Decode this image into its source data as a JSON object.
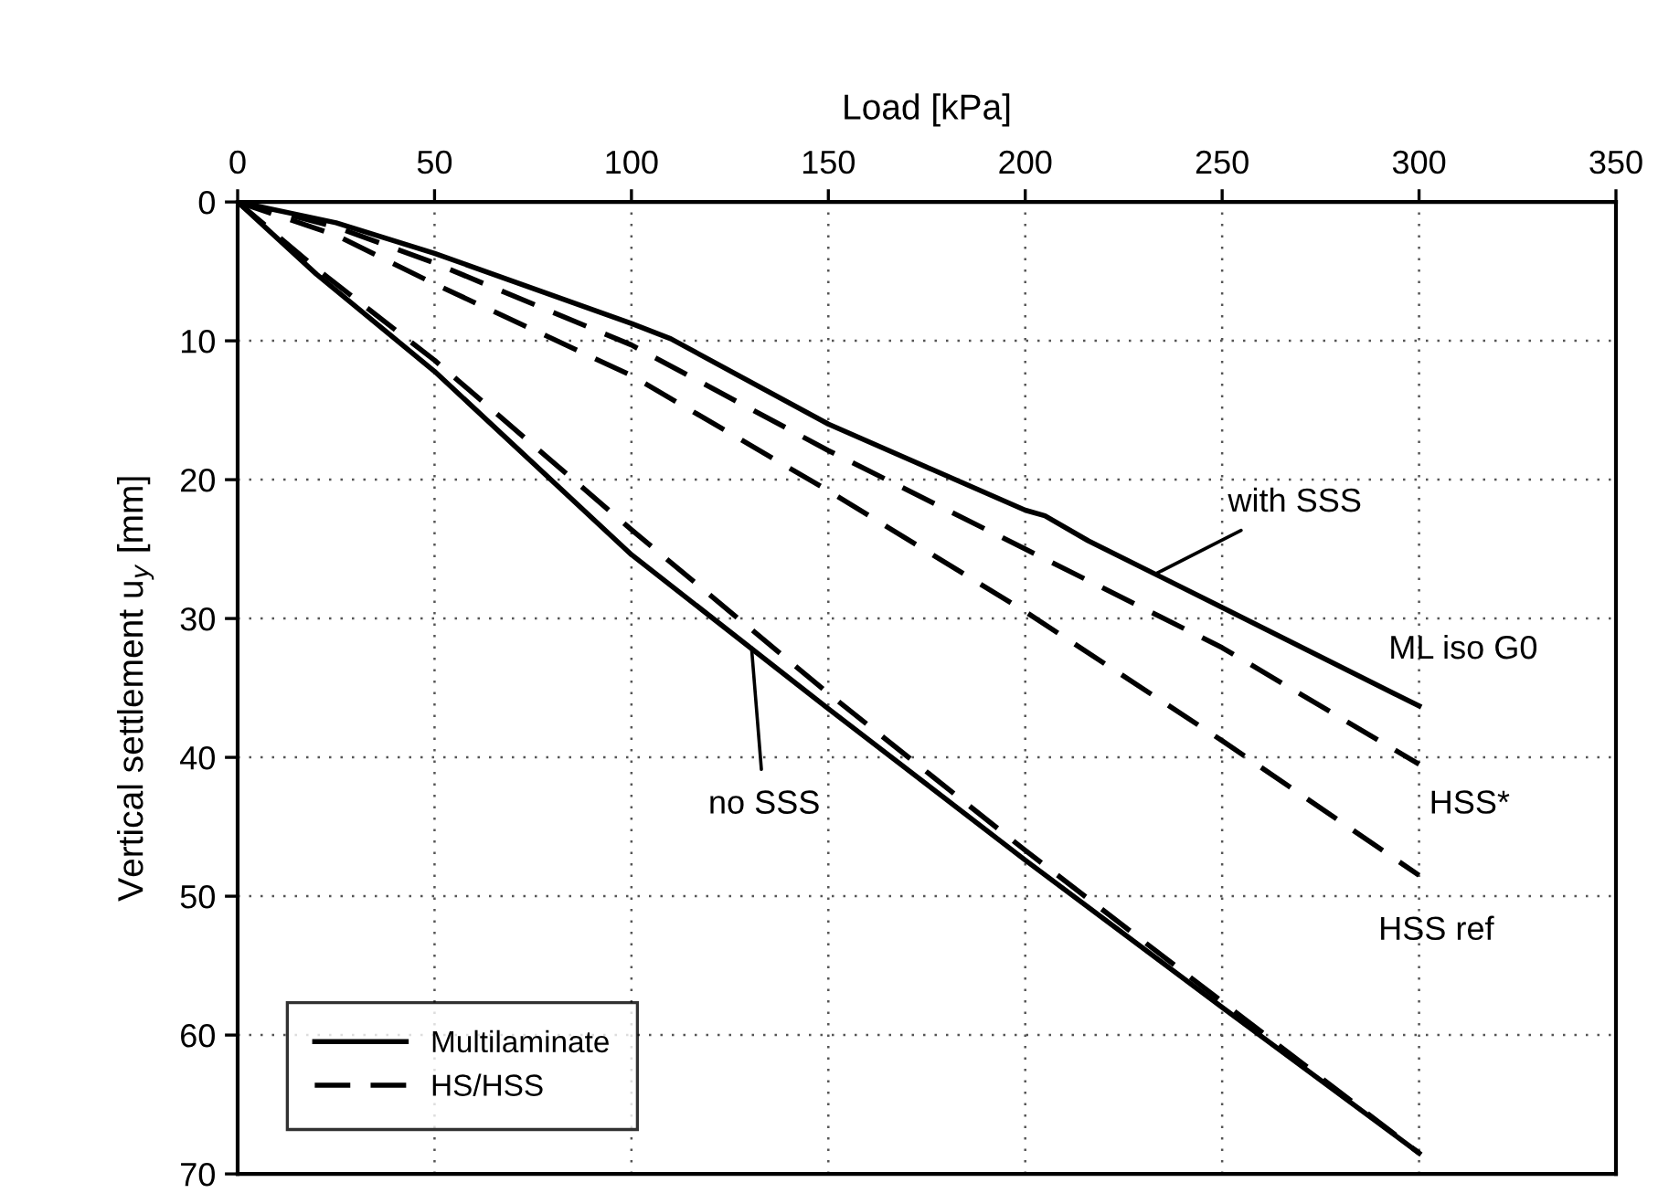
{
  "chart_data": {
    "type": "line",
    "xlabel": "Load [kPa]",
    "ylabel": "Vertical settlement u$_{y}$ [mm]",
    "xlim": [
      0,
      350
    ],
    "xticks": [
      0,
      50,
      100,
      150,
      200,
      250,
      300,
      350
    ],
    "ylim": [
      70,
      0
    ],
    "yticks": [
      0,
      10,
      20,
      30,
      40,
      50,
      60,
      70
    ],
    "grid": true,
    "legend": "bottom left",
    "marker": "none",
    "series": [
      {
        "name": "Multilaminate",
        "color": "#000000",
        "line_style": "solid",
        "x": [
          0,
          20,
          50,
          100,
          150,
          200,
          250,
          300
        ],
        "values": [
          0,
          5.2,
          12.2,
          25.4,
          36.5,
          47.4,
          58,
          68.5
        ]
      },
      {
        "name": "HS/HSS",
        "color": "#000000",
        "line_style": "dashed",
        "x": [
          0,
          20,
          50,
          100,
          150,
          200,
          250,
          300
        ],
        "values": [
          0,
          4.8,
          11.4,
          23.6,
          35.4,
          46.7,
          57.6,
          68.5
        ]
      },
      {
        "name": "ML iso G0",
        "color": "#000000",
        "line_style": "solid",
        "x": [
          0,
          25,
          50,
          100,
          110,
          150,
          200,
          205,
          216,
          250,
          300
        ],
        "values": [
          0,
          1.5,
          3.7,
          8.75,
          9.85,
          16.0,
          22.2,
          22.6,
          24.4,
          29.2,
          36.3
        ]
      },
      {
        "name": "HSS*",
        "color": "#000000",
        "line_style": "dashed",
        "x": [
          0,
          25,
          50,
          100,
          150,
          200,
          250,
          300
        ],
        "values": [
          0,
          1.8,
          4.4,
          10.3,
          17.9,
          25.0,
          32.1,
          40.5
        ]
      },
      {
        "name": "HSS ref",
        "color": "#000000",
        "line_style": "dashed",
        "x": [
          0,
          25,
          50,
          100,
          150,
          200,
          250,
          300
        ],
        "values": [
          0,
          2.4,
          5.9,
          12.5,
          20.8,
          29.5,
          38.8,
          48.5
        ]
      }
    ],
    "annotations": [
      {
        "text": "with SSS",
        "x": 233,
        "y": 26.8
      },
      {
        "text": "no SSS",
        "x": 130.5,
        "y": 32.1
      }
    ]
  }
}
